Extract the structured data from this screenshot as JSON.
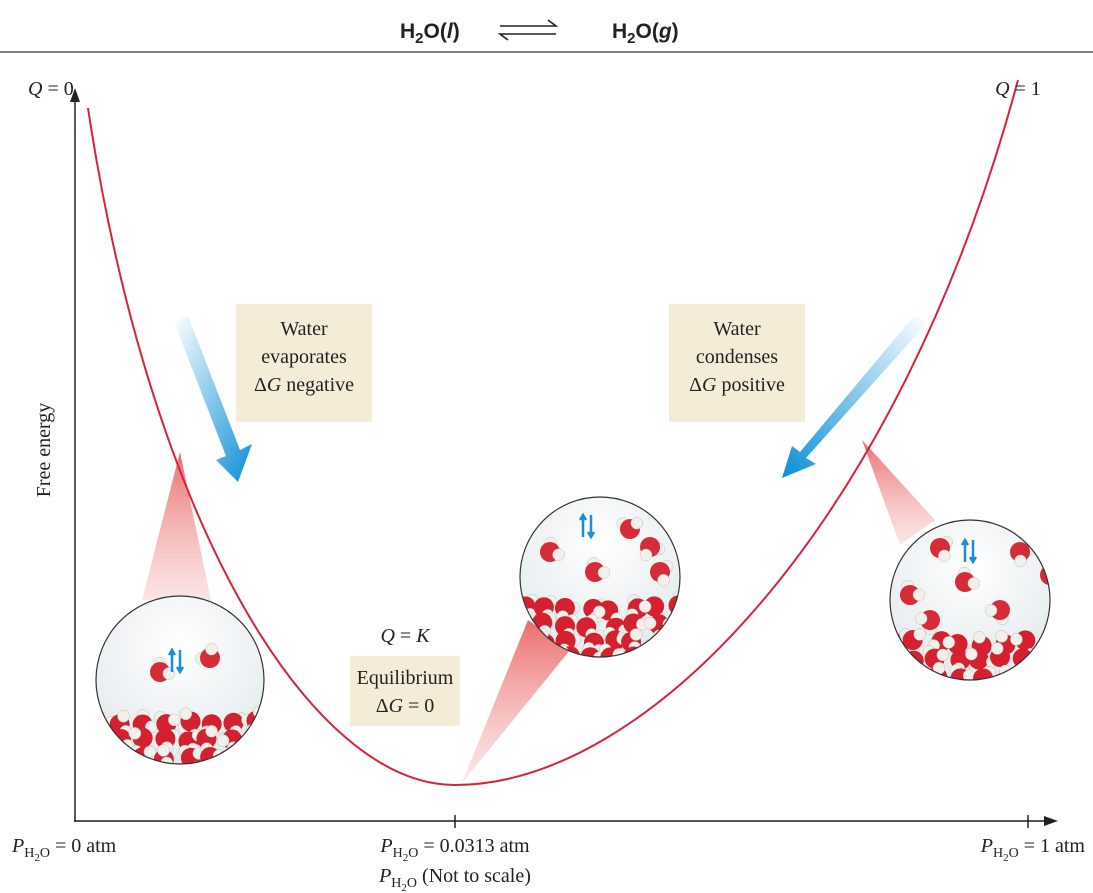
{
  "title": {
    "reactant": [
      "H",
      "2",
      "O(",
      "l",
      ")"
    ],
    "product": [
      "H",
      "2",
      "O(",
      "g",
      ")"
    ]
  },
  "y_axis_label": "Free energy",
  "q_left": [
    "Q",
    " = 0"
  ],
  "q_right": [
    "Q",
    " = 1"
  ],
  "q_equilibrium": [
    "Q",
    " = ",
    "K"
  ],
  "box_left": {
    "line1": "Water",
    "line2": "evaporates",
    "line3": [
      "Δ",
      "G",
      " negative"
    ]
  },
  "box_right": {
    "line1": "Water",
    "line2": "condenses",
    "line3": [
      "Δ",
      "G",
      " positive"
    ]
  },
  "box_equilibrium": {
    "line1": "Equilibrium",
    "line2": [
      "Δ",
      "G",
      " = 0"
    ]
  },
  "x_labels": [
    {
      "symbol": "P",
      "subscript": [
        "H",
        "2",
        "O"
      ],
      "text": " = 0 atm"
    },
    {
      "symbol": "P",
      "subscript": [
        "H",
        "2",
        "O"
      ],
      "text": " = 0.0313 atm"
    },
    {
      "symbol": "P",
      "subscript": [
        "H",
        "2",
        "O"
      ],
      "text": " = 1 atm"
    }
  ],
  "x_axis_title": {
    "symbol": "P",
    "subscript": [
      "H",
      "2",
      "O"
    ],
    "text": " (Not to scale)"
  }
}
